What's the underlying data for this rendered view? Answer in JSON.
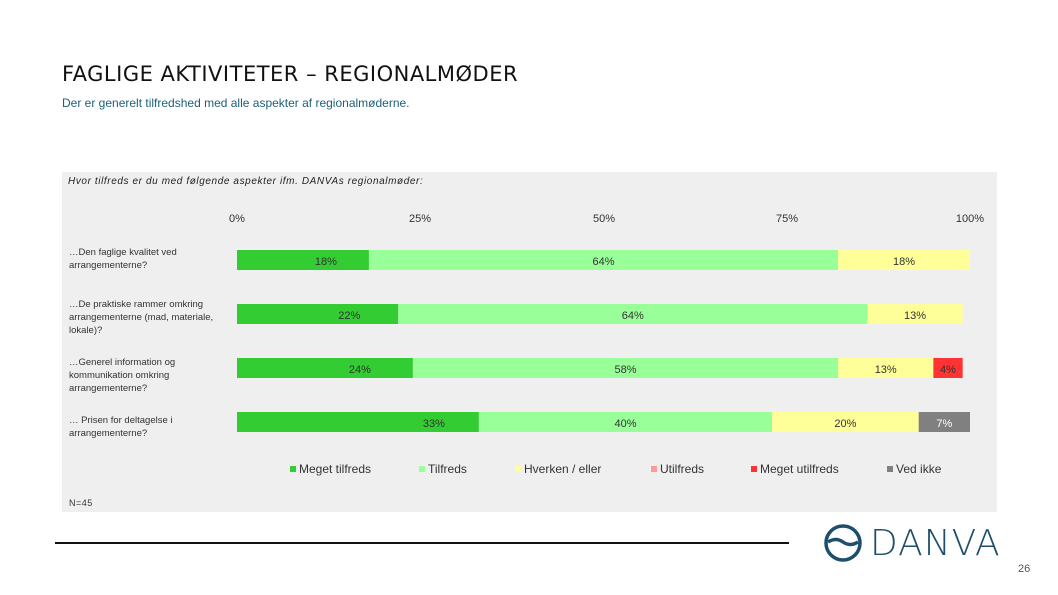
{
  "header": {
    "title": "FAGLIGE AKTIVITETER – REGIONALMØDER",
    "subtitle": "Der er generelt tilfredshed med alle aspekter af regionalmøderne."
  },
  "chart_data": {
    "type": "bar",
    "orientation": "horizontal-stacked-100",
    "question": "Hvor tilfreds er du med følgende aspekter ifm. DANVAs regionalmøder:",
    "categories": [
      "…Den faglige kvalitet ved arrangementerne?",
      "…De praktiske rammer omkring arrangementerne (mad, materiale, lokale)?",
      "…Generel information og kommunikation omkring arrangementerne?",
      "… Prisen for deltagelse i arrangementerne?"
    ],
    "x_ticks": [
      "0%",
      "25%",
      "50%",
      "75%",
      "100%"
    ],
    "xlim": [
      0,
      100
    ],
    "series": [
      {
        "name": "Meget tilfreds",
        "color": "#33cc33",
        "values": [
          18,
          22,
          24,
          33
        ],
        "labels": [
          "18%",
          "22%",
          "24%",
          "33%"
        ]
      },
      {
        "name": "Tilfreds",
        "color": "#99ff99",
        "values": [
          64,
          64,
          58,
          40
        ],
        "labels": [
          "64%",
          "64%",
          "58%",
          "40%"
        ]
      },
      {
        "name": "Hverken / eller",
        "color": "#ffff99",
        "values": [
          18,
          13,
          13,
          20
        ],
        "labels": [
          "18%",
          "13%",
          "13%",
          "20%"
        ]
      },
      {
        "name": "Utilfreds",
        "color": "#ff9999",
        "values": [
          0,
          0,
          0,
          0
        ],
        "labels": [
          "",
          "",
          "",
          ""
        ]
      },
      {
        "name": "Meget utilfreds",
        "color": "#ff3333",
        "values": [
          0,
          0,
          4,
          0
        ],
        "labels": [
          "",
          "",
          "4%",
          ""
        ]
      },
      {
        "name": "Ved ikke",
        "color": "#808080",
        "values": [
          0,
          0,
          0,
          7
        ],
        "labels": [
          "",
          "",
          "",
          "7%"
        ]
      }
    ],
    "legend_position": "bottom",
    "grid": false
  },
  "footer": {
    "note": "N=45",
    "logo_text": "DANVA",
    "page_number": "26"
  }
}
